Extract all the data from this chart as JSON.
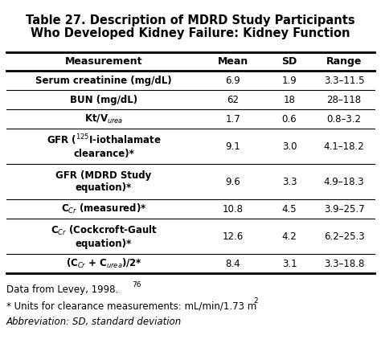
{
  "title_line1": "Table 27. Description of MDRD Study Participants",
  "title_line2": "Who Developed Kidney Failure: Kidney Function",
  "col_headers": [
    "Measurement",
    "Mean",
    "SD",
    "Range"
  ],
  "rows": [
    {
      "label": "Serum creatinine (mg/dL)",
      "mean": "6.9",
      "sd": "1.9",
      "range": "3.3–11.5",
      "multiline": false
    },
    {
      "label": "BUN (mg/dL)",
      "mean": "62",
      "sd": "18",
      "range": "28–118",
      "multiline": false
    },
    {
      "label": "Kt/V$_{urea}$",
      "mean": "1.7",
      "sd": "0.6",
      "range": "0.8–3.2",
      "multiline": false
    },
    {
      "label": "GFR ($^{125}$I-iothalamate\nclearance)*",
      "mean": "9.1",
      "sd": "3.0",
      "range": "4.1–18.2",
      "multiline": true
    },
    {
      "label": "GFR (MDRD Study\nequation)*",
      "mean": "9.6",
      "sd": "3.3",
      "range": "4.9–18.3",
      "multiline": true
    },
    {
      "label": "C$_{Cr}$ (measured)*",
      "mean": "10.8",
      "sd": "4.5",
      "range": "3.9–25.7",
      "multiline": false
    },
    {
      "label": "C$_{Cr}$ (Cockcroft-Gault\nequation)*",
      "mean": "12.6",
      "sd": "4.2",
      "range": "6.2–25.3",
      "multiline": true
    },
    {
      "label": "(C$_{Cr}$ + C$_{urea}$)/2*",
      "mean": "8.4",
      "sd": "3.1",
      "range": "3.3–18.8",
      "multiline": false
    }
  ],
  "fn1_main": "Data from Levey, 1998.",
  "fn1_sup": "76",
  "fn2_main": "* Units for clearance measurements: mL/min/1.73 m",
  "fn2_sup": "2",
  "fn3": "Abbreviation: SD, standard deviation",
  "bg_color": "white"
}
